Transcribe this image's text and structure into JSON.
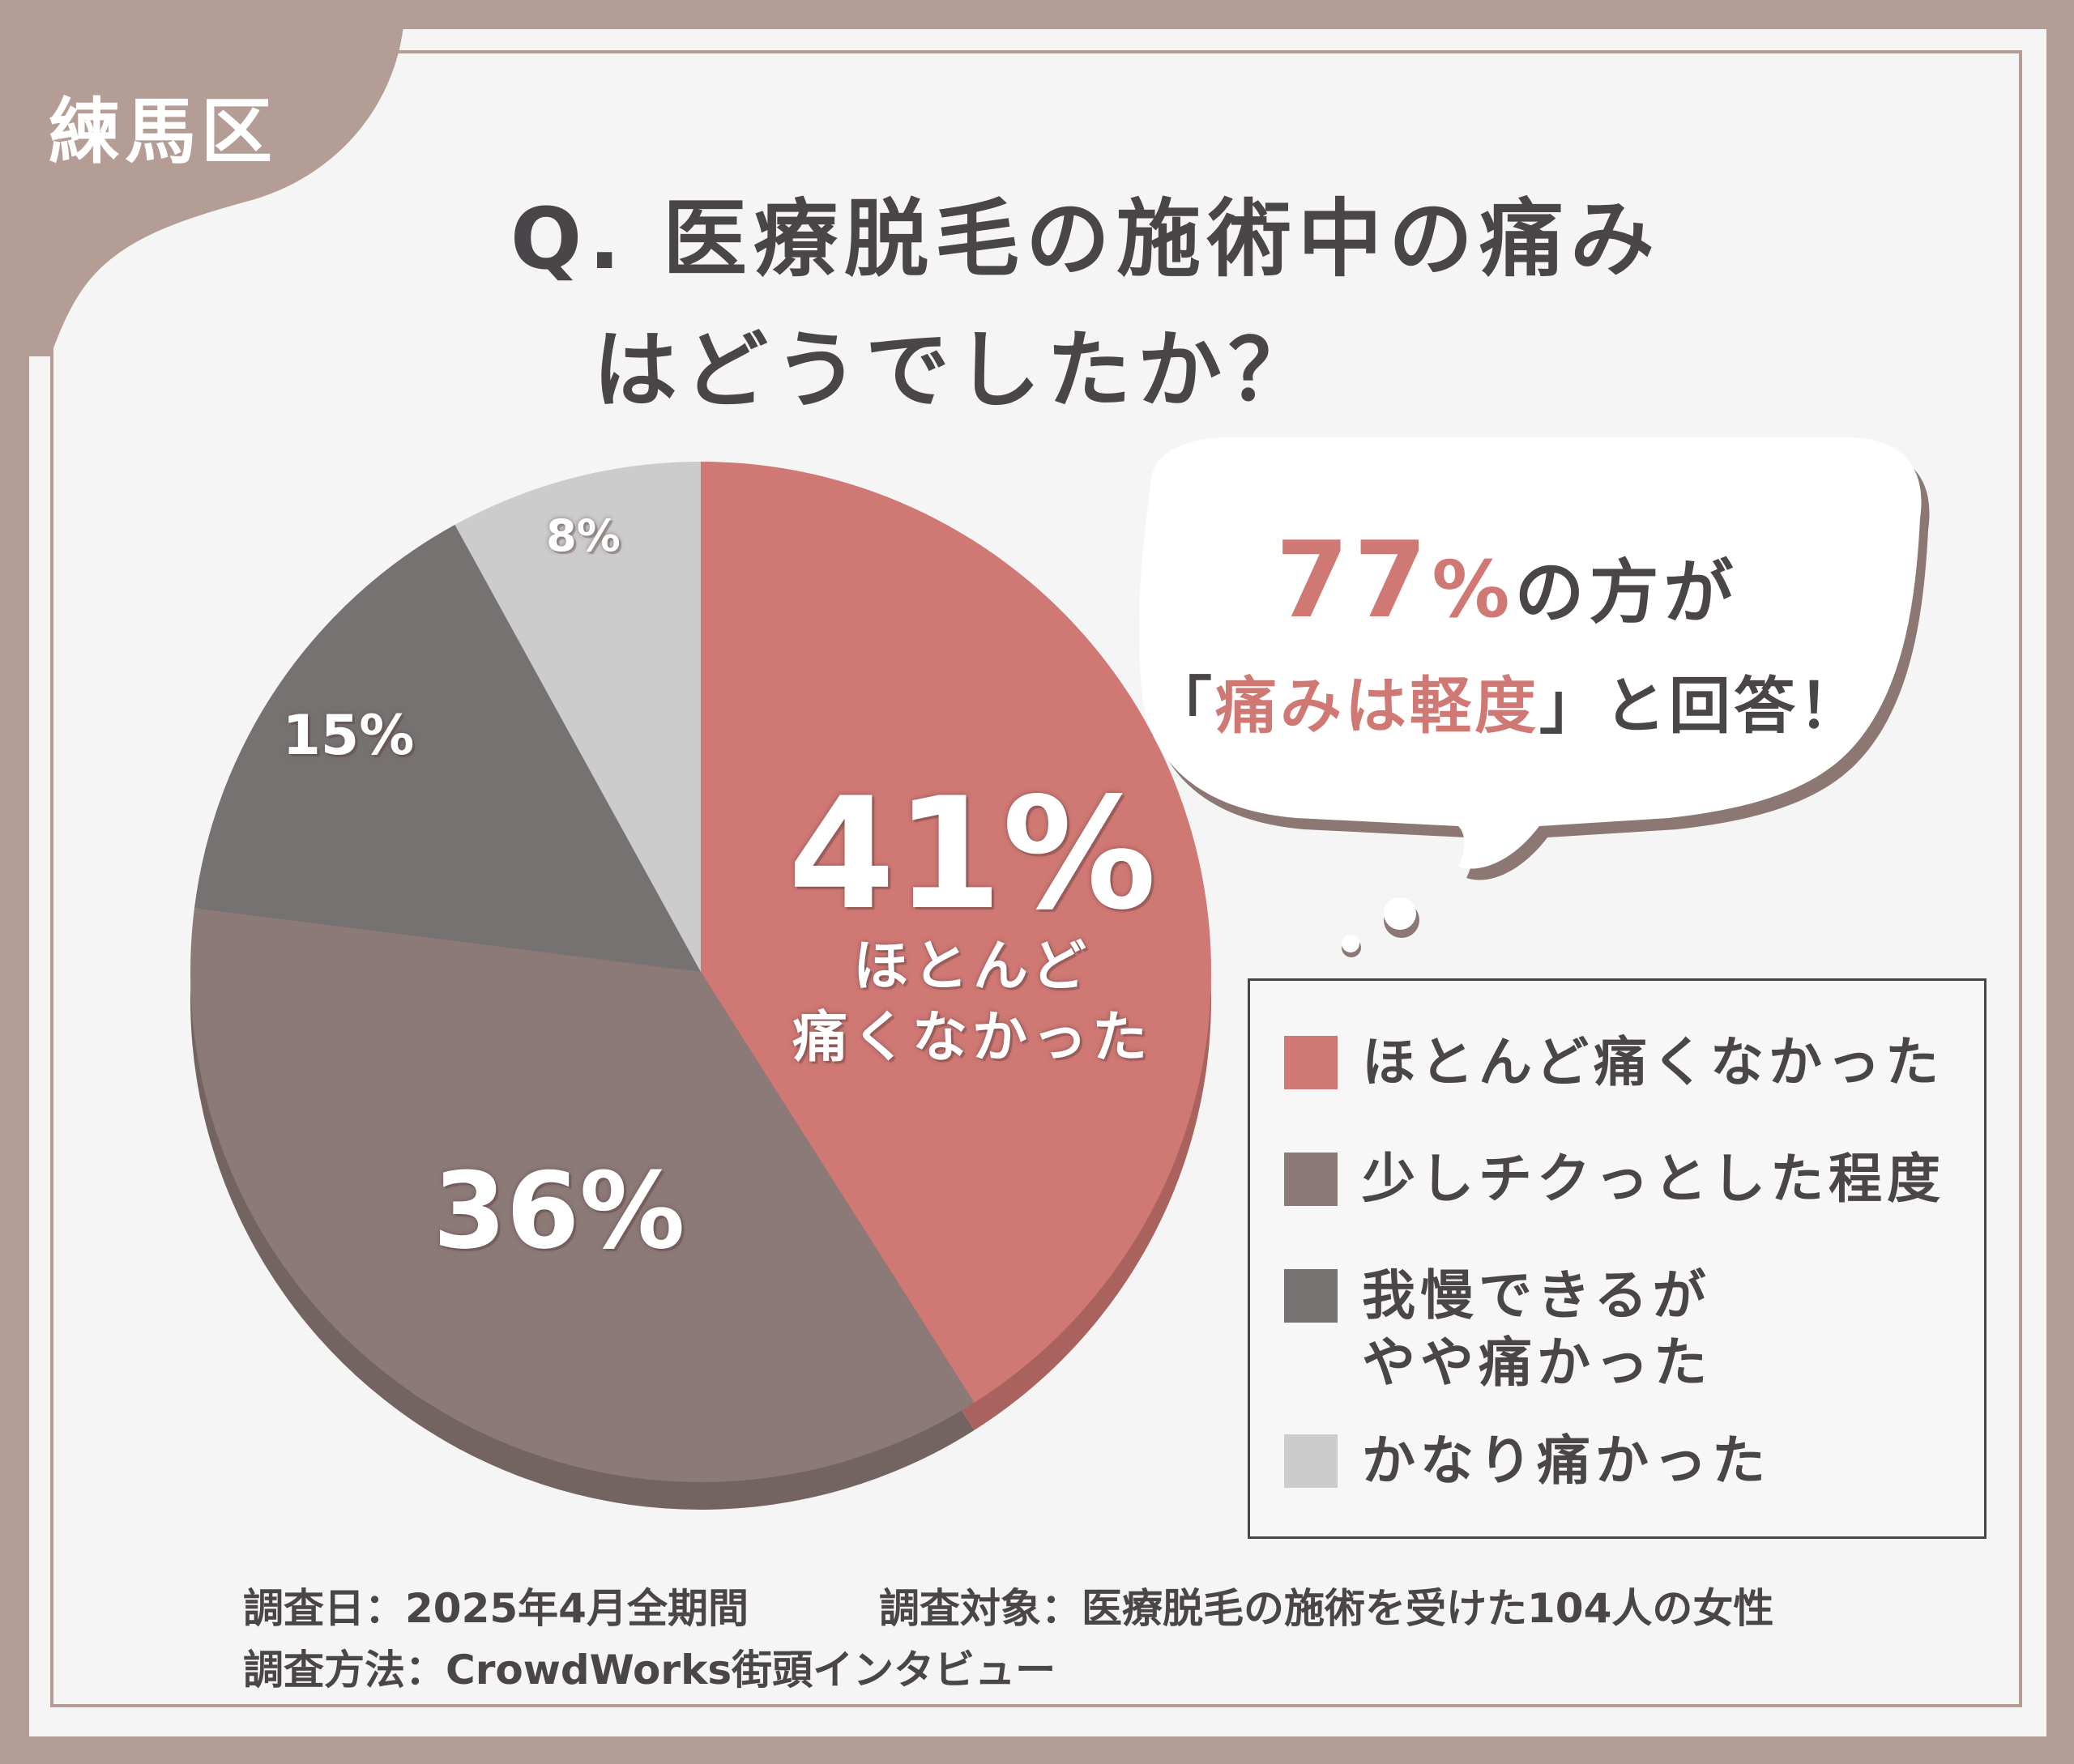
{
  "region_tag": "練馬区",
  "title": {
    "line1": "Q. 医療脱毛の施術中の痛み",
    "line2": "はどうでしたか？"
  },
  "colors": {
    "frame": "#b39d95",
    "accent": "#cf7874",
    "text": "#4a4548"
  },
  "chart_data": {
    "type": "pie",
    "slices": [
      {
        "label": "ほとんど痛くなかった",
        "value": 41,
        "display": "41%",
        "color": "#cf7874"
      },
      {
        "label": "少しチクっとした程度",
        "value": 36,
        "display": "36%",
        "color": "#8c7a78"
      },
      {
        "label": "我慢できるがやや痛かった",
        "value": 15,
        "display": "15%",
        "color": "#777272"
      },
      {
        "label": "かなり痛かった",
        "value": 8,
        "display": "8%",
        "color": "#cccccc"
      }
    ],
    "inner_label": {
      "line1": "ほとんど",
      "line2": "痛くなかった"
    },
    "legend_position": "right"
  },
  "callout": {
    "pct": "77",
    "pct_unit": "%",
    "line1_rest": "の方が",
    "open_bracket": "「",
    "emphasis": "痛みは軽度",
    "close": "」と回答！"
  },
  "legend": {
    "items": [
      {
        "line1": "ほとんど痛くなかった",
        "line2": ""
      },
      {
        "line1": "少しチクっとした程度",
        "line2": ""
      },
      {
        "line1": "我慢できるが",
        "line2": "やや痛かった"
      },
      {
        "line1": "かなり痛かった",
        "line2": ""
      }
    ]
  },
  "footer": {
    "date": "調査日：2025年4月全期間",
    "target": "調査対象：医療脱毛の施術を受けた104人の女性",
    "method": "調査方法：CrowdWorks街頭インタビュー"
  }
}
